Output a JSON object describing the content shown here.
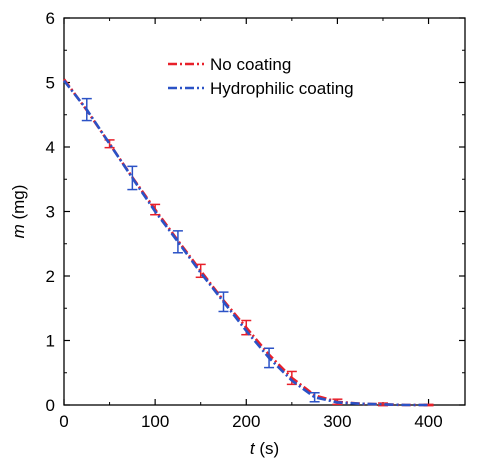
{
  "chart_data": {
    "type": "line",
    "title": "",
    "xlabel": {
      "symbol": "t",
      "unit": " (s)"
    },
    "ylabel": {
      "symbol": "m",
      "unit": " (mg)"
    },
    "xlim": [
      0,
      440
    ],
    "ylim": [
      0,
      6
    ],
    "xticks": [
      0,
      100,
      200,
      300,
      400
    ],
    "yticks": [
      0,
      1,
      2,
      3,
      4,
      5,
      6
    ],
    "grid": false,
    "legend_position": "top-center",
    "series": [
      {
        "name": "No coating",
        "color": "#e8202a",
        "dash": "dash-dot",
        "x": [
          0,
          25,
          50,
          75,
          100,
          125,
          150,
          175,
          200,
          225,
          250,
          275,
          300,
          325,
          350,
          375,
          400
        ],
        "y": [
          5.05,
          4.57,
          4.05,
          3.53,
          3.03,
          2.55,
          2.08,
          1.62,
          1.2,
          0.78,
          0.42,
          0.15,
          0.05,
          0.02,
          0.01,
          0.0,
          0.0
        ],
        "error_x": [
          50,
          100,
          150,
          200,
          250,
          300,
          350,
          400
        ],
        "error_y": [
          4.05,
          3.03,
          2.08,
          1.2,
          0.42,
          0.05,
          0.01,
          0.0
        ],
        "error_size": [
          0.06,
          0.08,
          0.1,
          0.11,
          0.1,
          0.04,
          0.02,
          0.01
        ]
      },
      {
        "name": "Hydrophilic coating",
        "color": "#2b52c6",
        "dash": "dash-dot",
        "x": [
          0,
          25,
          50,
          75,
          100,
          125,
          150,
          175,
          200,
          225,
          250,
          275,
          300,
          325,
          350,
          375,
          400
        ],
        "y": [
          5.03,
          4.58,
          4.05,
          3.52,
          3.0,
          2.53,
          2.05,
          1.6,
          1.15,
          0.73,
          0.38,
          0.12,
          0.04,
          0.02,
          0.01,
          0.0,
          0.0
        ],
        "error_x": [
          25,
          75,
          125,
          175,
          225,
          275
        ],
        "error_y": [
          4.58,
          3.52,
          2.53,
          1.6,
          0.73,
          0.12
        ],
        "error_size": [
          0.17,
          0.18,
          0.17,
          0.15,
          0.15,
          0.07
        ]
      }
    ]
  }
}
